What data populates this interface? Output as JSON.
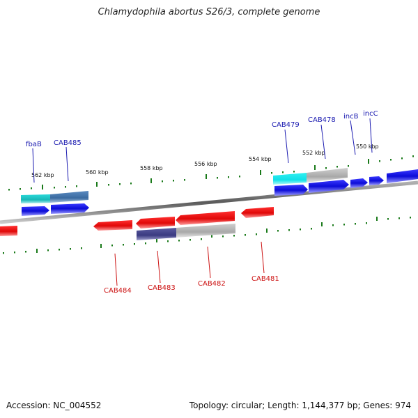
{
  "title": "Chlamydophila abortus S26/3, complete genome",
  "footer": {
    "accession": "Accession: NC_004552",
    "summary": "Topology: circular; Length: 1,144,377 bp; Genes: 974"
  },
  "scale_labels": [
    "562 kbp",
    "560 kbp",
    "558 kbp",
    "556 kbp",
    "554 kbp",
    "552 kbp",
    "550 kbp"
  ],
  "forward_gene_labels": [
    "fbaB",
    "CAB485",
    "CAB479",
    "CAB478",
    "incB",
    "incC"
  ],
  "reverse_gene_labels": [
    "CAB484",
    "CAB483",
    "CAB482",
    "CAB481"
  ],
  "colors": {
    "forward": "#1010e0",
    "reverse": "#e01010",
    "forward_label": "#1a1ab0",
    "reverse_label": "#cc1111",
    "tick": "#1a7a1a",
    "cyan": "#22c8c8",
    "steel": "#4a7ab0",
    "grey": "#b4b4b4",
    "purple": "#4a4a8e"
  }
}
